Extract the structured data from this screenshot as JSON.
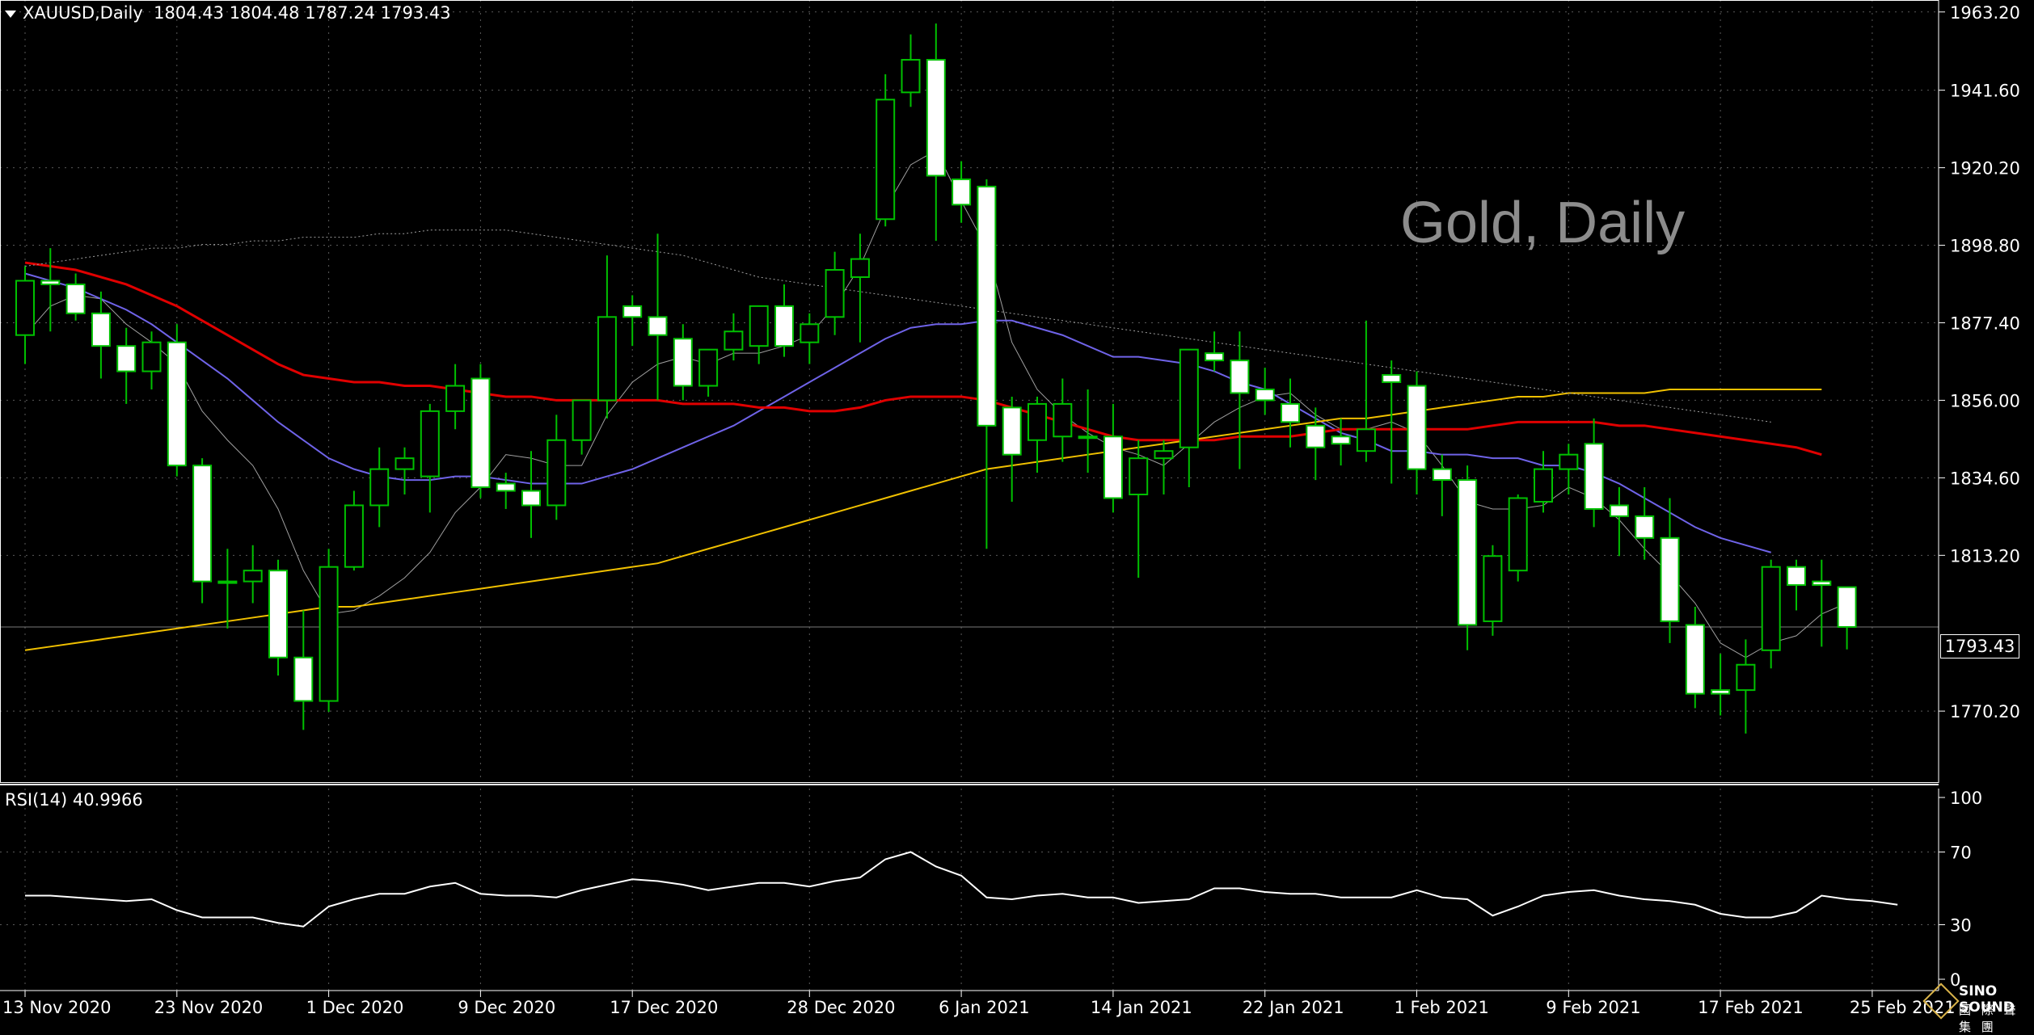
{
  "header": {
    "symbol": "XAUUSD,Daily",
    "ohlc": "1804.43 1804.48 1787.24 1793.43"
  },
  "watermark": "Gold, Daily",
  "rsi_label": "RSI(14) 40.9966",
  "current_price_label": "1793.43",
  "logo": {
    "name": "SINO SOUND",
    "subtitle": "國 際 聲 集 團"
  },
  "colors": {
    "background": "#000000",
    "bull_candle": "#000000",
    "bear_candle": "#ffffff",
    "wick": "#00c000",
    "ma_red": "#e00000",
    "ma_blue": "#6f63e8",
    "ma_yellow": "#f0c000",
    "ma_thin": "#a0a0a0",
    "ma_dotted": "#a0a0a0",
    "rsi_line": "#ffffff",
    "grid": "#5a5a5a"
  },
  "chart_data": [
    {
      "type": "candlestick",
      "title": "XAUUSD,Daily",
      "y_ticks": [
        "1963.20",
        "1941.60",
        "1920.20",
        "1898.80",
        "1877.40",
        "1856.00",
        "1834.60",
        "1813.20",
        "1770.20"
      ],
      "ylim": [
        1750.6,
        1966.5
      ],
      "x_ticks": [
        {
          "label": "13 Nov 2020",
          "index": 0
        },
        {
          "label": "23 Nov 2020",
          "index": 6
        },
        {
          "label": "1 Dec 2020",
          "index": 12
        },
        {
          "label": "9 Dec 2020",
          "index": 18
        },
        {
          "label": "17 Dec 2020",
          "index": 24
        },
        {
          "label": "28 Dec 2020",
          "index": 31
        },
        {
          "label": "6 Jan 2021",
          "index": 37
        },
        {
          "label": "14 Jan 2021",
          "index": 43
        },
        {
          "label": "22 Jan 2021",
          "index": 49
        },
        {
          "label": "1 Feb 2021",
          "index": 55
        },
        {
          "label": "9 Feb 2021",
          "index": 61
        },
        {
          "label": "17 Feb 2021",
          "index": 67
        },
        {
          "label": "25 Feb 2021",
          "index": 73
        }
      ],
      "candles": [
        {
          "o": 1874,
          "h": 1893,
          "l": 1866,
          "c": 1889
        },
        {
          "o": 1889,
          "h": 1898,
          "l": 1875,
          "c": 1888
        },
        {
          "o": 1888,
          "h": 1891,
          "l": 1878,
          "c": 1880
        },
        {
          "o": 1880,
          "h": 1886,
          "l": 1862,
          "c": 1871
        },
        {
          "o": 1871,
          "h": 1876,
          "l": 1855,
          "c": 1864
        },
        {
          "o": 1864,
          "h": 1875,
          "l": 1859,
          "c": 1872
        },
        {
          "o": 1872,
          "h": 1877,
          "l": 1835,
          "c": 1838
        },
        {
          "o": 1838,
          "h": 1840,
          "l": 1800,
          "c": 1806
        },
        {
          "o": 1806,
          "h": 1815,
          "l": 1793,
          "c": 1806
        },
        {
          "o": 1806,
          "h": 1816,
          "l": 1800,
          "c": 1809
        },
        {
          "o": 1809,
          "h": 1812,
          "l": 1780,
          "c": 1785
        },
        {
          "o": 1785,
          "h": 1798,
          "l": 1765,
          "c": 1773
        },
        {
          "o": 1773,
          "h": 1815,
          "l": 1770,
          "c": 1810
        },
        {
          "o": 1810,
          "h": 1831,
          "l": 1809,
          "c": 1827
        },
        {
          "o": 1827,
          "h": 1843,
          "l": 1821,
          "c": 1837
        },
        {
          "o": 1837,
          "h": 1843,
          "l": 1830,
          "c": 1840
        },
        {
          "o": 1835,
          "h": 1855,
          "l": 1825,
          "c": 1853
        },
        {
          "o": 1853,
          "h": 1866,
          "l": 1848,
          "c": 1860
        },
        {
          "o": 1862,
          "h": 1866,
          "l": 1829,
          "c": 1832
        },
        {
          "o": 1833,
          "h": 1836,
          "l": 1826,
          "c": 1831
        },
        {
          "o": 1831,
          "h": 1842,
          "l": 1818,
          "c": 1827
        },
        {
          "o": 1827,
          "h": 1852,
          "l": 1823,
          "c": 1845
        },
        {
          "o": 1845,
          "h": 1856,
          "l": 1841,
          "c": 1856
        },
        {
          "o": 1856,
          "h": 1896,
          "l": 1851,
          "c": 1879
        },
        {
          "o": 1882,
          "h": 1885,
          "l": 1871,
          "c": 1879
        },
        {
          "o": 1879,
          "h": 1902,
          "l": 1856,
          "c": 1874
        },
        {
          "o": 1873,
          "h": 1877,
          "l": 1856,
          "c": 1860
        },
        {
          "o": 1860,
          "h": 1870,
          "l": 1857,
          "c": 1870
        },
        {
          "o": 1870,
          "h": 1880,
          "l": 1867,
          "c": 1875
        },
        {
          "o": 1871,
          "h": 1882,
          "l": 1866,
          "c": 1882
        },
        {
          "o": 1882,
          "h": 1888,
          "l": 1868,
          "c": 1871
        },
        {
          "o": 1872,
          "h": 1880,
          "l": 1866,
          "c": 1877
        },
        {
          "o": 1879,
          "h": 1897,
          "l": 1874,
          "c": 1892
        },
        {
          "o": 1890,
          "h": 1902,
          "l": 1872,
          "c": 1895
        },
        {
          "o": 1906,
          "h": 1946,
          "l": 1904,
          "c": 1939
        },
        {
          "o": 1941,
          "h": 1957,
          "l": 1937,
          "c": 1950
        },
        {
          "o": 1950,
          "h": 1960,
          "l": 1900,
          "c": 1918
        },
        {
          "o": 1917,
          "h": 1922,
          "l": 1905,
          "c": 1910
        },
        {
          "o": 1915,
          "h": 1917,
          "l": 1815,
          "c": 1849
        },
        {
          "o": 1854,
          "h": 1857,
          "l": 1828,
          "c": 1841
        },
        {
          "o": 1845,
          "h": 1857,
          "l": 1836,
          "c": 1855
        },
        {
          "o": 1846,
          "h": 1862,
          "l": 1839,
          "c": 1855
        },
        {
          "o": 1846,
          "h": 1859,
          "l": 1836,
          "c": 1846
        },
        {
          "o": 1846,
          "h": 1855,
          "l": 1825,
          "c": 1829
        },
        {
          "o": 1830,
          "h": 1845,
          "l": 1807,
          "c": 1840
        },
        {
          "o": 1840,
          "h": 1845,
          "l": 1830,
          "c": 1842
        },
        {
          "o": 1843,
          "h": 1870,
          "l": 1832,
          "c": 1870
        },
        {
          "o": 1869,
          "h": 1875,
          "l": 1864,
          "c": 1867
        },
        {
          "o": 1867,
          "h": 1875,
          "l": 1837,
          "c": 1858
        },
        {
          "o": 1859,
          "h": 1865,
          "l": 1852,
          "c": 1856
        },
        {
          "o": 1855,
          "h": 1862,
          "l": 1843,
          "c": 1850
        },
        {
          "o": 1849,
          "h": 1854,
          "l": 1834,
          "c": 1843
        },
        {
          "o": 1846,
          "h": 1851,
          "l": 1838,
          "c": 1844
        },
        {
          "o": 1842,
          "h": 1878,
          "l": 1839,
          "c": 1848
        },
        {
          "o": 1863,
          "h": 1867,
          "l": 1833,
          "c": 1861
        },
        {
          "o": 1860,
          "h": 1864,
          "l": 1830,
          "c": 1837
        },
        {
          "o": 1837,
          "h": 1841,
          "l": 1824,
          "c": 1834
        },
        {
          "o": 1834,
          "h": 1838,
          "l": 1787,
          "c": 1794
        },
        {
          "o": 1795,
          "h": 1816,
          "l": 1791,
          "c": 1813
        },
        {
          "o": 1809,
          "h": 1830,
          "l": 1806,
          "c": 1829
        },
        {
          "o": 1828,
          "h": 1842,
          "l": 1825,
          "c": 1837
        },
        {
          "o": 1837,
          "h": 1844,
          "l": 1830,
          "c": 1841
        },
        {
          "o": 1844,
          "h": 1851,
          "l": 1821,
          "c": 1826
        },
        {
          "o": 1827,
          "h": 1832,
          "l": 1813,
          "c": 1824
        },
        {
          "o": 1824,
          "h": 1832,
          "l": 1812,
          "c": 1818
        },
        {
          "o": 1818,
          "h": 1829,
          "l": 1789,
          "c": 1795
        },
        {
          "o": 1794,
          "h": 1799,
          "l": 1771,
          "c": 1775
        },
        {
          "o": 1776,
          "h": 1786,
          "l": 1769,
          "c": 1775
        },
        {
          "o": 1776,
          "h": 1790,
          "l": 1764,
          "c": 1783
        },
        {
          "o": 1787,
          "h": 1812,
          "l": 1782,
          "c": 1810
        },
        {
          "o": 1810,
          "h": 1812,
          "l": 1798,
          "c": 1805
        },
        {
          "o": 1806,
          "h": 1812,
          "l": 1788,
          "c": 1805
        },
        {
          "o": 1804.43,
          "h": 1804.48,
          "l": 1787.24,
          "c": 1793.43
        }
      ],
      "moving_averages": [
        {
          "style": "thin",
          "values": [
            1874,
            1882,
            1885,
            1884,
            1877,
            1872,
            1866,
            1853,
            1845,
            1838,
            1826,
            1809,
            1797,
            1798,
            1802,
            1807,
            1814,
            1825,
            1832,
            1841,
            1840,
            1838,
            1838,
            1852,
            1861,
            1866,
            1868,
            1866,
            1869,
            1869,
            1871,
            1874,
            1882,
            1893,
            1909,
            1921,
            1925,
            1911,
            1898,
            1872,
            1859,
            1852,
            1847,
            1843,
            1841,
            1838,
            1844,
            1850,
            1854,
            1857,
            1858,
            1852,
            1848,
            1848,
            1850,
            1847,
            1838,
            1828,
            1826,
            1826,
            1827,
            1832,
            1829,
            1823,
            1815,
            1808,
            1800,
            1789,
            1785,
            1789,
            1791,
            1797,
            1800
          ]
        },
        {
          "style": "blue",
          "values": [
            1891,
            1889,
            1887,
            1884,
            1881,
            1877,
            1872,
            1867,
            1862,
            1856,
            1850,
            1845,
            1840,
            1837,
            1835,
            1834,
            1834,
            1835,
            1835,
            1834,
            1833,
            1833,
            1833,
            1835,
            1837,
            1840,
            1843,
            1846,
            1849,
            1853,
            1857,
            1861,
            1865,
            1869,
            1873,
            1876,
            1877,
            1877,
            1878,
            1878,
            1876,
            1874,
            1871,
            1868,
            1868,
            1867,
            1866,
            1864,
            1861,
            1859,
            1855,
            1851,
            1847,
            1845,
            1842,
            1842,
            1841,
            1841,
            1840,
            1840,
            1838,
            1838,
            1836,
            1833,
            1829,
            1825,
            1821,
            1818,
            1816,
            1814
          ]
        },
        {
          "style": "red",
          "values": [
            1894,
            1893,
            1892,
            1890,
            1888,
            1885,
            1882,
            1878,
            1874,
            1870,
            1866,
            1863,
            1862,
            1861,
            1861,
            1860,
            1860,
            1859,
            1858,
            1857,
            1857,
            1856,
            1856,
            1856,
            1856,
            1856,
            1855,
            1855,
            1855,
            1854,
            1854,
            1853,
            1853,
            1854,
            1856,
            1857,
            1857,
            1857,
            1856,
            1854,
            1852,
            1850,
            1848,
            1846,
            1845,
            1845,
            1845,
            1845,
            1846,
            1846,
            1846,
            1847,
            1848,
            1848,
            1848,
            1848,
            1848,
            1848,
            1849,
            1850,
            1850,
            1850,
            1850,
            1849,
            1849,
            1848,
            1847,
            1846,
            1845,
            1844,
            1843,
            1841
          ]
        },
        {
          "style": "yellow",
          "values": [
            1787,
            1788,
            1789,
            1790,
            1791,
            1792,
            1793,
            1794,
            1795,
            1796,
            1797,
            1798,
            1799,
            1799,
            1800,
            1801,
            1802,
            1803,
            1804,
            1805,
            1806,
            1807,
            1808,
            1809,
            1810,
            1811,
            1813,
            1815,
            1817,
            1819,
            1821,
            1823,
            1825,
            1827,
            1829,
            1831,
            1833,
            1835,
            1837,
            1838,
            1839,
            1840,
            1841,
            1842,
            1843,
            1844,
            1845,
            1846,
            1847,
            1848,
            1849,
            1850,
            1851,
            1851,
            1852,
            1853,
            1854,
            1855,
            1856,
            1857,
            1857,
            1858,
            1858,
            1858,
            1858,
            1859,
            1859,
            1859,
            1859,
            1859,
            1859,
            1859
          ]
        },
        {
          "style": "dotted",
          "values": [
            1893,
            1894,
            1895,
            1896,
            1897,
            1898,
            1898,
            1899,
            1899,
            1900,
            1900,
            1901,
            1901,
            1901,
            1902,
            1902,
            1903,
            1903,
            1903,
            1903,
            1902,
            1901,
            1900,
            1899,
            1898,
            1897,
            1896,
            1894,
            1892,
            1890,
            1889,
            1888,
            1887,
            1886,
            1885,
            1884,
            1883,
            1882,
            1881,
            1880,
            1879,
            1878,
            1877,
            1876,
            1875,
            1874,
            1873,
            1872,
            1871,
            1870,
            1869,
            1868,
            1867,
            1866,
            1865,
            1864,
            1863,
            1862,
            1861,
            1860,
            1859,
            1858,
            1857,
            1856,
            1855,
            1854,
            1853,
            1852,
            1851,
            1850
          ]
        }
      ]
    },
    {
      "type": "line",
      "title": "RSI(14) 40.9966",
      "y_ticks": [
        "100",
        "70",
        "30",
        "0"
      ],
      "ylim": [
        0,
        100
      ],
      "series": [
        {
          "values": [
            46,
            46,
            45,
            44,
            43,
            44,
            38,
            34,
            34,
            34,
            31,
            29,
            40,
            44,
            47,
            47,
            51,
            53,
            47,
            46,
            46,
            45,
            49,
            52,
            55,
            54,
            52,
            49,
            51,
            53,
            53,
            51,
            54,
            56,
            66,
            70,
            62,
            57,
            45,
            44,
            46,
            47,
            45,
            45,
            42,
            43,
            44,
            50,
            50,
            48,
            47,
            47,
            45,
            45,
            45,
            49,
            45,
            44,
            35,
            40,
            46,
            48,
            49,
            46,
            44,
            43,
            41,
            36,
            34,
            34,
            37,
            46,
            44,
            43,
            41
          ]
        }
      ]
    }
  ]
}
